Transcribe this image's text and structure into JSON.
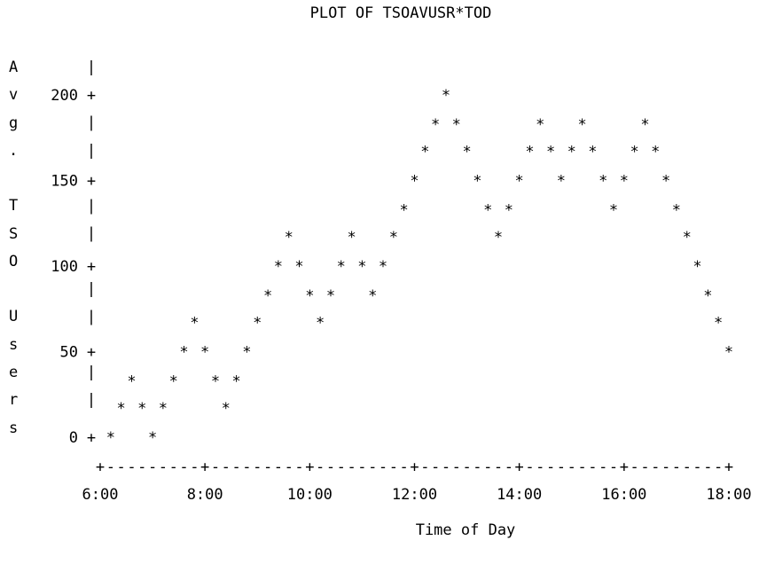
{
  "chart_data": {
    "type": "scatter",
    "title": "PLOT OF TSOAVUSR*TOD",
    "ylabel_chars": [
      "A",
      "v",
      "g",
      ".",
      "",
      "T",
      "S",
      "O",
      "",
      "U",
      "s",
      "e",
      "r",
      "s"
    ],
    "xlabel": "Time of Day",
    "marker": "*",
    "x_ticks": [
      "6:00",
      "8:00",
      "10:00",
      "12:00",
      "14:00",
      "16:00",
      "18:00"
    ],
    "x_tick_values": [
      6,
      8,
      10,
      12,
      14,
      16,
      18
    ],
    "y_ticks": [
      "0",
      "50",
      "100",
      "150",
      "200"
    ],
    "y_tick_values": [
      0,
      50,
      100,
      150,
      200
    ],
    "xlim": [
      6,
      18
    ],
    "ylim": [
      0,
      200
    ],
    "grid": false,
    "series": [
      {
        "x": [
          6.2,
          6.4,
          6.6,
          6.8,
          7.0,
          7.2,
          7.4,
          7.6,
          7.8,
          8.0,
          8.2,
          8.4,
          8.6,
          8.8,
          9.0,
          9.2,
          9.4,
          9.6,
          9.8,
          10.0,
          10.2,
          10.4,
          10.6,
          10.8,
          11.0,
          11.2,
          11.4,
          11.6,
          11.8,
          12.0,
          12.2,
          12.4,
          12.6,
          12.8,
          13.0,
          13.2,
          13.4,
          13.6,
          13.8,
          14.0,
          14.2,
          14.4,
          14.6,
          14.8,
          15.0,
          15.2,
          15.4,
          15.6,
          15.8,
          16.0,
          16.2,
          16.4,
          16.6,
          16.8,
          17.0,
          17.2,
          17.4,
          17.6,
          17.8,
          18.0
        ],
        "y": [
          0,
          17,
          33,
          17,
          0,
          17,
          33,
          50,
          67,
          50,
          33,
          17,
          33,
          50,
          67,
          83,
          100,
          117,
          100,
          83,
          67,
          83,
          100,
          117,
          100,
          83,
          100,
          117,
          133,
          150,
          167,
          183,
          200,
          183,
          167,
          150,
          133,
          117,
          133,
          150,
          167,
          183,
          167,
          150,
          167,
          183,
          167,
          150,
          133,
          150,
          167,
          183,
          167,
          150,
          133,
          117,
          100,
          83,
          67,
          50
        ]
      }
    ]
  }
}
